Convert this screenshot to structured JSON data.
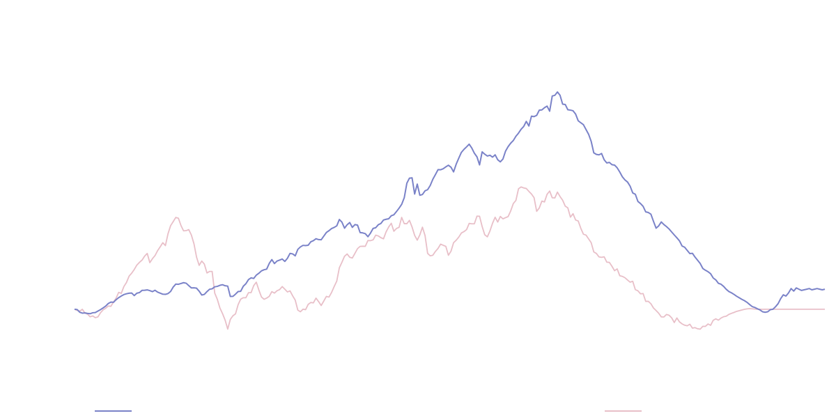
{
  "colors": {
    "background": "#ffffff",
    "series_0": "#7a82c8",
    "series_1": "#e8bfc8"
  },
  "chart_data": {
    "type": "line",
    "title": "",
    "xlabel": "",
    "ylabel": "",
    "x_count": 290,
    "ylim": [
      0,
      600
    ],
    "grid": false,
    "legend_placement": "bottom",
    "series": [
      {
        "values": [
          129.0,
          128.5,
          124.3,
          122.8,
          123.2,
          122.4,
          121.9,
          123.4,
          123.8,
          126.1,
          128.4,
          131.1,
          134.1,
          138.2,
          140.4,
          140.1,
          144.2,
          147.5,
          150.1,
          152.4,
          153.7,
          154.6,
          154.9,
          150.8,
          154.6,
          155.6,
          159.1,
          159.3,
          159.9,
          158.7,
          157.1,
          159.3,
          156.3,
          154.7,
          153.0,
          152.8,
          154.0,
          157.4,
          164.4,
          169.1,
          168.8,
          170.1,
          171.4,
          170.5,
          166.7,
          163.0,
          163.2,
          162.6,
          157.8,
          151.7,
          152.7,
          157.1,
          160.9,
          161.6,
          164.8,
          165.5,
          167.2,
          168.1,
          166.5,
          165.9,
          149.4,
          149.6,
          153.1,
          157.2,
          157.7,
          165.7,
          169.7,
          176.3,
          179.1,
          178.1,
          183.4,
          186.4,
          190.2,
          192.0,
          193.0,
          202.1,
          208.2,
          201.9,
          205.9,
          207.4,
          209.1,
          205.3,
          210.3,
          218.1,
          217.3,
          214.2,
          224.5,
          228.4,
          230.9,
          230.6,
          231.1,
          236.6,
          238.4,
          241.5,
          240.1,
          239.8,
          245.6,
          251.4,
          254.3,
          257.7,
          259.5,
          262.0,
          272.2,
          267.8,
          258.3,
          263.8,
          267.3,
          259.6,
          264.0,
          263.2,
          251.3,
          250.8,
          249.5,
          244.7,
          250.5,
          257.9,
          259.0,
          263.8,
          265.8,
          271.3,
          272.5,
          273.3,
          278.1,
          279.7,
          284.8,
          290.2,
          296.3,
          306.9,
          330.1,
          338.1,
          338.6,
          312.8,
          328.6,
          310.8,
          312.0,
          317.9,
          319.7,
          326.4,
          336.3,
          343.8,
          351.6,
          351.5,
          353.1,
          356.1,
          358.7,
          355.5,
          348.1,
          360.4,
          370.0,
          379.2,
          384.0,
          388.0,
          392.3,
          386.2,
          377.9,
          372.1,
          359.2,
          380.0,
          376.3,
          373.4,
          374.6,
          371.6,
          375.3,
          367.4,
          364.1,
          368.5,
          381.1,
          388.3,
          393.9,
          398.1,
          404.9,
          409.9,
          416.0,
          420.5,
          428.6,
          421.3,
          436.9,
          436.3,
          438.2,
          446.5,
          446.9,
          450.4,
          453.0,
          444.9,
          469.1,
          470.2,
          475.5,
          470.3,
          456.1,
          455.6,
          447.2,
          446.6,
          445.6,
          440.3,
          429.6,
          426.4,
          423.4,
          415.7,
          408.1,
          396.7,
          378.5,
          376.0,
          375.3,
          377.4,
          367.4,
          362.4,
          363.2,
          359.6,
          358.9,
          354.6,
          347.9,
          340.3,
          335.3,
          331.9,
          325.3,
          314.5,
          312.4,
          300.9,
          297.6,
          293.1,
          284.3,
          283.3,
          280.6,
          269.1,
          258.3,
          262.0,
          268.3,
          264.1,
          260.8,
          257.0,
          252.2,
          247.5,
          243.0,
          238.1,
          229.9,
          227.9,
          222.8,
          217.8,
          218.2,
          212.2,
          207.1,
          201.9,
          194.0,
          191.2,
          188.9,
          185.6,
          178.9,
          175.8,
          170.4,
          168.9,
          165.5,
          160.9,
          157.3,
          155.3,
          152.7,
          149.8,
          147.4,
          144.9,
          142.8,
          140.1,
          136.6,
          133.3,
          131.9,
          129.8,
          128.0,
          125.0,
          124.2,
          125.0,
          128.3,
          129.0,
          133.0,
          138.0,
          146.0,
          152.0,
          150.0,
          155.0,
          162.0,
          158.0,
          163.0,
          161.0,
          159.0,
          160.0,
          161.0,
          162.0,
          160.0,
          161.0,
          162.0,
          161.0,
          160.0,
          161.0
        ]
      },
      {
        "values": [
          129.0,
          127.2,
          126.0,
          128.9,
          123.0,
          121.2,
          117.0,
          118.3,
          115.6,
          116.8,
          123.4,
          128.0,
          130.6,
          134.2,
          133.7,
          140.6,
          146.6,
          155.9,
          154.4,
          165.2,
          171.7,
          181.7,
          186.5,
          192.4,
          199.5,
          203.8,
          207.4,
          213.7,
          218.0,
          203.3,
          209.6,
          214.6,
          222.5,
          228.6,
          235.1,
          230.5,
          249.4,
          262.3,
          268.8,
          275.5,
          274.2,
          262.5,
          254.0,
          254.4,
          256.0,
          247.4,
          233.4,
          212.1,
          199.0,
          205.9,
          201.0,
          186.9,
          189.3,
          189.3,
          154.7,
          144.7,
          130.9,
          122.1,
          111.6,
          97.3,
          112.8,
          118.6,
          121.6,
          136.2,
          145.1,
          147.4,
          147.4,
          155.4,
          155.5,
          166.6,
          172.2,
          159.7,
          148.5,
          144.9,
          146.8,
          149.6,
          157.1,
          154.8,
          158.5,
          160.4,
          165.2,
          161.0,
          156.6,
          158.3,
          150.5,
          143.6,
          127.6,
          125.0,
          129.1,
          128.4,
          136.8,
          139.8,
          139.2,
          146.7,
          141.2,
          135.0,
          142.1,
          149.5,
          148.4,
          155.8,
          165.1,
          173.9,
          195.2,
          204.0,
          213.6,
          217.2,
          211.9,
          210.7,
          218.1,
          225.7,
          229.3,
          229.5,
          229.4,
          238.6,
          238.4,
          239.7,
          247.2,
          245.9,
          243.2,
          241.3,
          252.4,
          260.2,
          266.1,
          253.4,
          257.8,
          259.7,
          275.5,
          265.5,
          265.5,
          270.7,
          260.2,
          246.8,
          239.2,
          247.6,
          259.9,
          246.6,
          218.1,
          214.2,
          215.1,
          221.2,
          226.0,
          232.8,
          231.0,
          229.4,
          215.1,
          221.6,
          235.1,
          239.1,
          244.1,
          250.6,
          252.8,
          256.0,
          265.9,
          265.3,
          265.3,
          277.5,
          277.3,
          261.0,
          247.8,
          244.5,
          253.8,
          266.1,
          275.7,
          268.1,
          277.0,
          273.2,
          275.1,
          276.8,
          285.9,
          297.6,
          302.6,
          321.1,
          324.1,
          322.5,
          321.6,
          317.0,
          312.8,
          306.9,
          285.2,
          290.5,
          301.5,
          300.1,
          312.3,
          317.5,
          306.8,
          306.5,
          315.8,
          308.8,
          302.9,
          293.5,
          290.7,
          275.9,
          281.4,
          271.3,
          269.8,
          258.1,
          248.7,
          247.3,
          241.3,
          235.1,
          220.4,
          218.0,
          212.5,
          211.8,
          212.6,
          204.2,
          203.7,
          197.5,
          190.5,
          193.4,
          182.5,
          181.4,
          179.3,
          175.6,
          172.2,
          173.6,
          160.3,
          158.4,
          153.6,
          154.0,
          141.6,
          141.6,
          137.8,
          131.0,
          126.9,
          122.6,
          116.8,
          116.7,
          120.7,
          119.5,
          115.3,
          107.8,
          115.1,
          108.9,
          105.7,
          103.6,
          102.6,
          105.1,
          98.9,
          99.7,
          97.9,
          97.3,
          101.8,
          101.7,
          105.5,
          103.4,
          111.4,
          113.7,
          111.6,
          114.9,
          117.1,
          117.9,
          120.7,
          122.4,
          123.9,
          125.6,
          126.7,
          127.8,
          128.9,
          129.6,
          130.0,
          129.7,
          129.3,
          129.0,
          129.0,
          128.9,
          129.0,
          129.0,
          129.0,
          129.0,
          129.0,
          129.0,
          129.0,
          129.0,
          129.0,
          129.0,
          129.0,
          129.0,
          129.0,
          129.0,
          129.0,
          129.0,
          129.0,
          129.0,
          129.0,
          129.0,
          129.0,
          129.0,
          129.0,
          129.0
        ]
      }
    ]
  }
}
